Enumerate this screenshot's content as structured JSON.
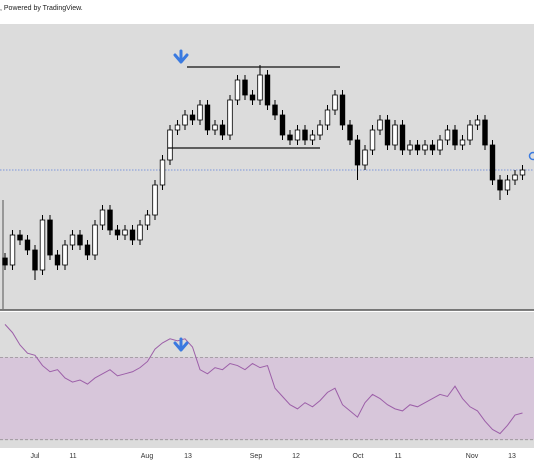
{
  "header": {
    "text": ", Powered by TradingView."
  },
  "chart_data": {
    "type": "candlestick",
    "ylim": [
      0,
      282
    ],
    "open": [
      50,
      43,
      73,
      68,
      58,
      38,
      88,
      53,
      43,
      63,
      73,
      63,
      53,
      83,
      98,
      78,
      73,
      78,
      68,
      83,
      93,
      123,
      148,
      178,
      183,
      193,
      188,
      203,
      178,
      183,
      173,
      208,
      228,
      213,
      208,
      233,
      203,
      193,
      173,
      168,
      178,
      168,
      173,
      183,
      198,
      213,
      183,
      168,
      143,
      158,
      178,
      188,
      163,
      183,
      158,
      163,
      158,
      163,
      158,
      168,
      178,
      163,
      168,
      183,
      188,
      163,
      128,
      118,
      128,
      133
    ],
    "high": [
      55,
      78,
      78,
      73,
      63,
      93,
      93,
      58,
      68,
      78,
      78,
      68,
      88,
      103,
      103,
      83,
      83,
      83,
      88,
      98,
      128,
      153,
      183,
      188,
      198,
      198,
      208,
      208,
      188,
      188,
      213,
      233,
      233,
      218,
      243,
      238,
      208,
      198,
      178,
      183,
      183,
      178,
      188,
      203,
      218,
      218,
      188,
      173,
      163,
      183,
      193,
      193,
      188,
      188,
      168,
      168,
      168,
      168,
      173,
      183,
      183,
      173,
      188,
      193,
      193,
      168,
      133,
      133,
      138,
      143
    ],
    "low": [
      38,
      38,
      63,
      53,
      28,
      33,
      48,
      38,
      38,
      58,
      58,
      48,
      48,
      78,
      73,
      68,
      68,
      63,
      63,
      78,
      88,
      118,
      143,
      173,
      178,
      183,
      183,
      173,
      173,
      168,
      168,
      203,
      208,
      203,
      203,
      198,
      188,
      168,
      163,
      163,
      163,
      163,
      168,
      178,
      193,
      178,
      163,
      128,
      138,
      153,
      173,
      158,
      158,
      153,
      153,
      153,
      153,
      153,
      153,
      163,
      158,
      158,
      163,
      178,
      158,
      123,
      108,
      113,
      123,
      128
    ],
    "close": [
      43,
      73,
      68,
      58,
      38,
      88,
      53,
      43,
      63,
      73,
      63,
      53,
      83,
      98,
      78,
      73,
      78,
      68,
      83,
      93,
      123,
      148,
      178,
      183,
      193,
      188,
      203,
      178,
      183,
      173,
      208,
      228,
      213,
      208,
      233,
      203,
      193,
      173,
      168,
      178,
      168,
      173,
      183,
      198,
      213,
      183,
      168,
      143,
      158,
      178,
      188,
      163,
      183,
      158,
      163,
      158,
      163,
      158,
      168,
      178,
      163,
      168,
      183,
      188,
      163,
      128,
      118,
      128,
      133,
      138
    ],
    "up_color": "#ffffff",
    "down_color": "#000000",
    "x_axis_labels": [
      "Jul",
      "11",
      "Aug",
      "13",
      "Sep",
      "12",
      "Oct",
      "11",
      "Nov",
      "13"
    ],
    "rsi": {
      "values": [
        86,
        82,
        76,
        72,
        71,
        66,
        63,
        64,
        60,
        58,
        59,
        57,
        60,
        62,
        64,
        61,
        62,
        63,
        65,
        68,
        74,
        77,
        79,
        78,
        79,
        75,
        64,
        62,
        65,
        64,
        67,
        66,
        64,
        67,
        65,
        66,
        55,
        51,
        47,
        45,
        48,
        46,
        49,
        53,
        55,
        47,
        44,
        41,
        48,
        52,
        50,
        47,
        45,
        44,
        47,
        46,
        48,
        50,
        52,
        51,
        56,
        50,
        46,
        44,
        39,
        35,
        33,
        37,
        42,
        43
      ],
      "ylim": [
        26,
        92
      ],
      "levels": [
        70,
        30
      ],
      "color": "#9c5fa8",
      "band_color": "#d7c6da"
    }
  }
}
